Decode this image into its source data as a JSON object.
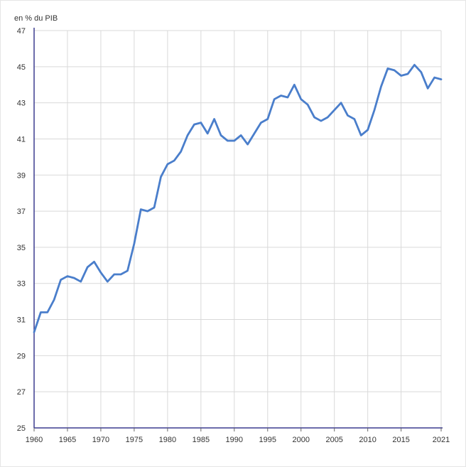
{
  "chart_data": {
    "type": "line",
    "title": "",
    "ylabel": "en % du PIB",
    "xlabel": "",
    "xlim": [
      1960,
      2021
    ],
    "ylim": [
      25,
      47
    ],
    "x_ticks": [
      1960,
      1965,
      1970,
      1975,
      1980,
      1985,
      1990,
      1995,
      2000,
      2005,
      2010,
      2015,
      2021
    ],
    "y_ticks": [
      25,
      27,
      29,
      31,
      33,
      35,
      37,
      39,
      41,
      43,
      45,
      47
    ],
    "grid": true,
    "legend": "none",
    "series": [
      {
        "color": "#4a7ecb",
        "x": [
          1960,
          1961,
          1962,
          1963,
          1964,
          1965,
          1966,
          1967,
          1968,
          1969,
          1970,
          1971,
          1972,
          1973,
          1974,
          1975,
          1976,
          1977,
          1978,
          1979,
          1980,
          1981,
          1982,
          1983,
          1984,
          1985,
          1986,
          1987,
          1988,
          1989,
          1990,
          1991,
          1992,
          1993,
          1994,
          1995,
          1996,
          1997,
          1998,
          1999,
          2000,
          2001,
          2002,
          2003,
          2004,
          2005,
          2006,
          2007,
          2008,
          2009,
          2010,
          2011,
          2012,
          2013,
          2014,
          2015,
          2016,
          2017,
          2018,
          2019,
          2020,
          2021
        ],
        "values": [
          30.3,
          31.4,
          31.4,
          32.1,
          33.2,
          33.4,
          33.3,
          33.1,
          33.9,
          34.2,
          33.6,
          33.1,
          33.5,
          33.5,
          33.7,
          35.2,
          37.1,
          37.0,
          37.2,
          38.9,
          39.6,
          39.8,
          40.3,
          41.2,
          41.8,
          41.9,
          41.3,
          42.1,
          41.2,
          40.9,
          40.9,
          41.2,
          40.7,
          41.3,
          41.9,
          42.1,
          43.2,
          43.4,
          43.3,
          44.0,
          43.2,
          42.9,
          42.2,
          42.0,
          42.2,
          42.6,
          43.0,
          42.3,
          42.1,
          41.2,
          41.5,
          42.6,
          43.9,
          44.9,
          44.8,
          44.5,
          44.6,
          45.1,
          44.7,
          43.8,
          44.4,
          44.3
        ]
      }
    ]
  }
}
